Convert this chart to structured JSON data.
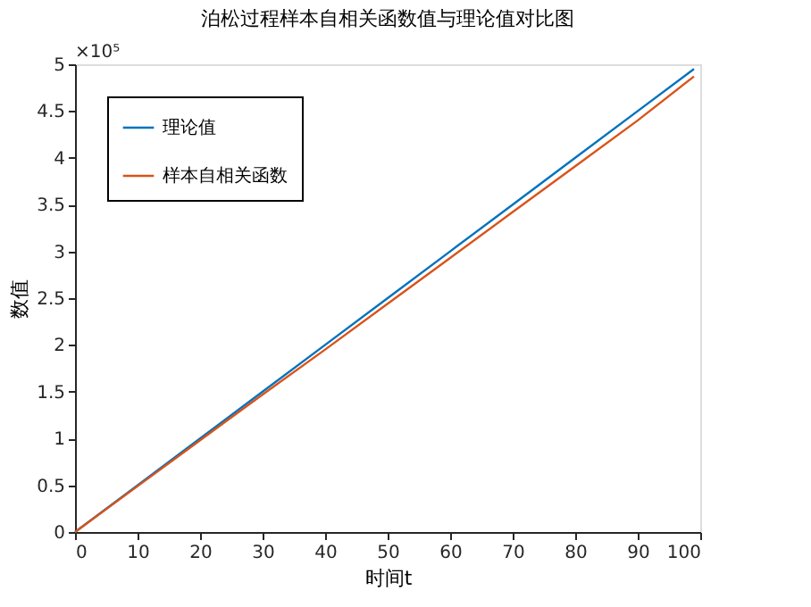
{
  "chart_data": {
    "type": "line",
    "title": "泊松过程样本自相关函数值与理论值对比图",
    "xlabel": "时间t",
    "ylabel": "数值",
    "x": [
      0,
      10,
      20,
      30,
      40,
      50,
      60,
      70,
      80,
      90,
      99
    ],
    "series": [
      {
        "name": "理论值",
        "color": "#0072bd",
        "values": [
          0,
          0.5,
          1,
          1.5,
          2,
          2.5,
          3,
          3.5,
          4,
          4.5,
          4.95
        ]
      },
      {
        "name": "样本自相关函数",
        "color": "#d95319",
        "values": [
          0,
          0.49,
          0.98,
          1.47,
          1.95,
          2.44,
          2.93,
          3.42,
          3.91,
          4.4,
          4.87
        ]
      }
    ],
    "xlim": [
      0,
      100
    ],
    "xticks": [
      0,
      10,
      20,
      30,
      40,
      50,
      60,
      70,
      80,
      90,
      100
    ],
    "ylim": [
      0,
      5
    ],
    "yticks": [
      0,
      0.5,
      1,
      1.5,
      2,
      2.5,
      3,
      3.5,
      4,
      4.5,
      5
    ],
    "annotations": [
      "×10⁵"
    ],
    "grid": false,
    "legend": "top left",
    "line_style": "solid",
    "marker": "none"
  }
}
